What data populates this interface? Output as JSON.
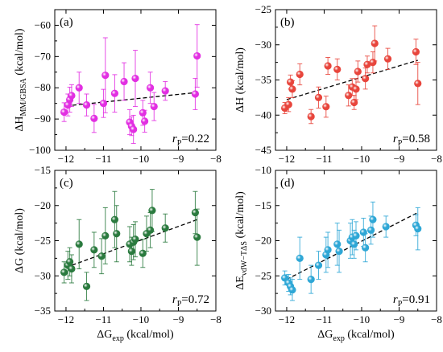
{
  "chart_data": [
    {
      "type": "scatter",
      "panel_label": "(a)",
      "ylabel": "ΔH_MM/GBSA (kcal/mol)",
      "xlabel": "",
      "xlim": [
        -12.3,
        -8
      ],
      "ylim": [
        -100,
        -55
      ],
      "xticks": [
        -12,
        -11,
        -10,
        -9,
        -8
      ],
      "yticks": [
        -100,
        -90,
        -80,
        -70,
        -60
      ],
      "color": "#e22fe2",
      "annotation": {
        "r_label": "r",
        "r_sub": "P",
        "value": "=0.22"
      },
      "trend": {
        "x": [
          -12.0,
          -8.5
        ],
        "y": [
          -85.8,
          -81.5
        ]
      },
      "points": [
        {
          "x": -12.05,
          "y": -87.8,
          "err": 3.0
        },
        {
          "x": -11.95,
          "y": -85.5,
          "err": 3.5
        },
        {
          "x": -11.9,
          "y": -83.8,
          "err": 4.0
        },
        {
          "x": -11.85,
          "y": -82.5,
          "err": 3.5
        },
        {
          "x": -11.65,
          "y": -80.0,
          "err": 5.0
        },
        {
          "x": -11.45,
          "y": -85.5,
          "err": 3.5
        },
        {
          "x": -11.25,
          "y": -89.8,
          "err": 4.5
        },
        {
          "x": -11.0,
          "y": -85.0,
          "err": 4.5
        },
        {
          "x": -10.95,
          "y": -76.0,
          "err": 12.0
        },
        {
          "x": -10.7,
          "y": -81.8,
          "err": 6.0
        },
        {
          "x": -10.45,
          "y": -78.0,
          "err": 6.0
        },
        {
          "x": -10.3,
          "y": -91.0,
          "err": 4.0
        },
        {
          "x": -10.25,
          "y": -92.3,
          "err": 3.0
        },
        {
          "x": -10.2,
          "y": -93.3,
          "err": 4.5
        },
        {
          "x": -10.15,
          "y": -77.0,
          "err": 9.0
        },
        {
          "x": -9.95,
          "y": -88.0,
          "err": 4.0
        },
        {
          "x": -9.9,
          "y": -90.7,
          "err": 3.5
        },
        {
          "x": -9.75,
          "y": -80.0,
          "err": 5.0
        },
        {
          "x": -9.65,
          "y": -86.0,
          "err": 4.5
        },
        {
          "x": -9.35,
          "y": -81.0,
          "err": 3.0
        },
        {
          "x": -8.55,
          "y": -82.0,
          "err": 5.0
        },
        {
          "x": -8.5,
          "y": -69.8,
          "err": 10.0
        }
      ]
    },
    {
      "type": "scatter",
      "panel_label": "(b)",
      "ylabel": "ΔH (kcal/mol)",
      "xlabel": "",
      "xlim": [
        -12.3,
        -8
      ],
      "ylim": [
        -45,
        -25
      ],
      "xticks": [
        -12,
        -11,
        -10,
        -9,
        -8
      ],
      "yticks": [
        -45,
        -40,
        -35,
        -30,
        -25
      ],
      "color": "#e8453c",
      "annotation": {
        "r_label": "r",
        "r_sub": "P",
        "value": "=0.58"
      },
      "trend": {
        "x": [
          -12.0,
          -8.5
        ],
        "y": [
          -37.8,
          -32.2
        ]
      },
      "points": [
        {
          "x": -12.05,
          "y": -39.0,
          "err": 0.8
        },
        {
          "x": -11.95,
          "y": -38.5,
          "err": 1.0
        },
        {
          "x": -11.9,
          "y": -35.3,
          "err": 1.0
        },
        {
          "x": -11.85,
          "y": -36.3,
          "err": 1.2
        },
        {
          "x": -11.65,
          "y": -34.2,
          "err": 1.5
        },
        {
          "x": -11.35,
          "y": -40.2,
          "err": 1.0
        },
        {
          "x": -11.15,
          "y": -37.5,
          "err": 1.5
        },
        {
          "x": -10.95,
          "y": -38.8,
          "err": 1.5
        },
        {
          "x": -10.9,
          "y": -33.0,
          "err": 1.2
        },
        {
          "x": -10.65,
          "y": -33.5,
          "err": 1.5
        },
        {
          "x": -10.35,
          "y": -37.2,
          "err": 1.5
        },
        {
          "x": -10.25,
          "y": -36.0,
          "err": 1.2
        },
        {
          "x": -10.2,
          "y": -38.2,
          "err": 1.0
        },
        {
          "x": -10.15,
          "y": -36.3,
          "err": 1.5
        },
        {
          "x": -10.1,
          "y": -33.8,
          "err": 1.5
        },
        {
          "x": -9.9,
          "y": -34.8,
          "err": 1.5
        },
        {
          "x": -9.85,
          "y": -32.8,
          "err": 1.2
        },
        {
          "x": -9.7,
          "y": -32.5,
          "err": 1.5
        },
        {
          "x": -9.65,
          "y": -29.8,
          "err": 2.5
        },
        {
          "x": -9.3,
          "y": -32.0,
          "err": 1.5
        },
        {
          "x": -8.55,
          "y": -31.0,
          "err": 1.8
        },
        {
          "x": -8.5,
          "y": -35.5,
          "err": 3.0
        }
      ]
    },
    {
      "type": "scatter",
      "panel_label": "(c)",
      "ylabel": "ΔG (kcal/mol)",
      "xlabel": "ΔG_exp (kcal/mol)",
      "xlim": [
        -12.3,
        -8
      ],
      "ylim": [
        -35,
        -15
      ],
      "xticks": [
        -12,
        -11,
        -10,
        -9,
        -8
      ],
      "yticks": [
        -35,
        -30,
        -25,
        -20,
        -15
      ],
      "color": "#2a7a3e",
      "annotation": {
        "r_label": "r",
        "r_sub": "P",
        "value": "=0.72"
      },
      "trend": {
        "x": [
          -12.0,
          -8.5
        ],
        "y": [
          -28.8,
          -22.0
        ]
      },
      "points": [
        {
          "x": -12.05,
          "y": -29.5,
          "err": 1.5
        },
        {
          "x": -11.95,
          "y": -28.5,
          "err": 2.0
        },
        {
          "x": -11.9,
          "y": -28.0,
          "err": 2.0
        },
        {
          "x": -11.85,
          "y": -29.0,
          "err": 2.0
        },
        {
          "x": -11.65,
          "y": -25.5,
          "err": 3.5
        },
        {
          "x": -11.45,
          "y": -31.5,
          "err": 2.0
        },
        {
          "x": -11.25,
          "y": -26.3,
          "err": 2.5
        },
        {
          "x": -11.05,
          "y": -27.2,
          "err": 2.5
        },
        {
          "x": -10.95,
          "y": -24.3,
          "err": 4.0
        },
        {
          "x": -10.7,
          "y": -22.0,
          "err": 4.0
        },
        {
          "x": -10.65,
          "y": -24.0,
          "err": 4.0
        },
        {
          "x": -10.3,
          "y": -25.5,
          "err": 2.5
        },
        {
          "x": -10.25,
          "y": -26.5,
          "err": 2.0
        },
        {
          "x": -10.2,
          "y": -25.2,
          "err": 2.5
        },
        {
          "x": -10.15,
          "y": -24.8,
          "err": 2.5
        },
        {
          "x": -9.95,
          "y": -26.8,
          "err": 2.0
        },
        {
          "x": -9.85,
          "y": -24.0,
          "err": 2.5
        },
        {
          "x": -9.75,
          "y": -23.5,
          "err": 2.5
        },
        {
          "x": -9.7,
          "y": -20.7,
          "err": 3.0
        },
        {
          "x": -9.35,
          "y": -23.2,
          "err": 2.0
        },
        {
          "x": -8.55,
          "y": -21.0,
          "err": 3.0
        },
        {
          "x": -8.5,
          "y": -24.5,
          "err": 4.0
        }
      ]
    },
    {
      "type": "scatter",
      "panel_label": "(d)",
      "ylabel": "ΔE_vdW−TΔS (kcal/mol)",
      "xlabel": "ΔG_exp (kcal/mol)",
      "xlim": [
        -12.3,
        -8
      ],
      "ylim": [
        -30,
        -10
      ],
      "xticks": [
        -12,
        -11,
        -10,
        -9,
        -8
      ],
      "yticks": [
        -30,
        -25,
        -20,
        -15,
        -10
      ],
      "color": "#2ea7d6",
      "annotation": {
        "r_label": "r",
        "r_sub": "P",
        "value": "=0.91"
      },
      "trend": {
        "x": [
          -12.0,
          -8.5
        ],
        "y": [
          -25.5,
          -16.0
        ]
      },
      "points": [
        {
          "x": -12.05,
          "y": -25.3,
          "err": 1.0
        },
        {
          "x": -11.95,
          "y": -26.0,
          "err": 1.2
        },
        {
          "x": -11.9,
          "y": -26.5,
          "err": 1.2
        },
        {
          "x": -11.85,
          "y": -27.0,
          "err": 1.5
        },
        {
          "x": -11.65,
          "y": -22.5,
          "err": 3.0
        },
        {
          "x": -11.35,
          "y": -25.5,
          "err": 2.0
        },
        {
          "x": -11.15,
          "y": -23.5,
          "err": 2.0
        },
        {
          "x": -10.95,
          "y": -22.0,
          "err": 2.5
        },
        {
          "x": -10.9,
          "y": -21.3,
          "err": 2.5
        },
        {
          "x": -10.65,
          "y": -20.5,
          "err": 3.0
        },
        {
          "x": -10.6,
          "y": -21.5,
          "err": 3.0
        },
        {
          "x": -10.3,
          "y": -20.0,
          "err": 2.5
        },
        {
          "x": -10.25,
          "y": -19.5,
          "err": 2.5
        },
        {
          "x": -10.2,
          "y": -20.5,
          "err": 2.0
        },
        {
          "x": -10.15,
          "y": -19.3,
          "err": 2.0
        },
        {
          "x": -9.95,
          "y": -18.8,
          "err": 2.0
        },
        {
          "x": -9.9,
          "y": -21.0,
          "err": 2.0
        },
        {
          "x": -9.75,
          "y": -18.5,
          "err": 2.0
        },
        {
          "x": -9.7,
          "y": -17.0,
          "err": 2.5
        },
        {
          "x": -9.35,
          "y": -18.0,
          "err": 1.5
        },
        {
          "x": -8.55,
          "y": -17.8,
          "err": 1.5
        },
        {
          "x": -8.5,
          "y": -18.3,
          "err": 3.0
        }
      ]
    }
  ]
}
